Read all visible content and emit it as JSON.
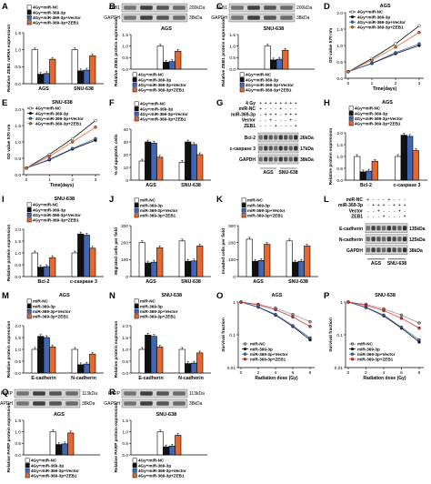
{
  "colors": {
    "white": "#ffffff",
    "black": "#111111",
    "blue": "#3f67b5",
    "orange": "#e8672f",
    "gray": "#9a9a9a",
    "red": "#d9342b"
  },
  "panels": [
    {
      "id": "A",
      "letter": "A",
      "kind": "bar",
      "ylabel": "Relative ZEB1 mRNA expression",
      "ylim": [
        0,
        1.5
      ],
      "yticks": [
        0.0,
        0.5,
        1.0,
        1.5
      ],
      "groups": [
        "AGS",
        "SNU-638"
      ],
      "legend": [
        "4Gy+miR-NC",
        "4Gy+miR-369-3p",
        "4Gy+miR-369-3p+Vector",
        "4Gy+miR-369-3p+ZEB1"
      ],
      "colors": [
        "white",
        "black",
        "blue",
        "orange"
      ],
      "values": [
        [
          1.0,
          0.28,
          0.3,
          0.72
        ],
        [
          1.0,
          0.38,
          0.4,
          0.82
        ]
      ]
    },
    {
      "id": "B",
      "letter": "B",
      "kind": "blot_bar",
      "blot_rows": [
        "ZEB1",
        "GAPDH"
      ],
      "blot_sizes": [
        "200kDa",
        "38kDa"
      ],
      "title": "AGS",
      "ylabel": "Relative ZEB1 protein expression",
      "ylim": [
        0,
        1.5
      ],
      "yticks": [
        0.0,
        0.5,
        1.0,
        1.5
      ],
      "groups": [
        ""
      ],
      "legend": [
        "4Gy+miR-NC",
        "4Gy+miR-369-3p",
        "4Gy+miR-369-3p+Vector",
        "4Gy+miR-369-3p+ZEB1"
      ],
      "colors": [
        "white",
        "black",
        "blue",
        "orange"
      ],
      "values": [
        [
          1.0,
          0.3,
          0.33,
          0.78
        ]
      ]
    },
    {
      "id": "C",
      "letter": "C",
      "kind": "blot_bar",
      "blot_rows": [
        "ZEB1",
        "GAPDH"
      ],
      "blot_sizes": [
        "200kDa",
        "38kDa"
      ],
      "title": "SNU-638",
      "ylabel": "Relative ZEB1 protein expression",
      "ylim": [
        0,
        1.5
      ],
      "yticks": [
        0.0,
        0.5,
        1.0,
        1.5
      ],
      "groups": [
        ""
      ],
      "legend": [
        "4Gy+miR-NC",
        "4Gy+miR-369-3p",
        "4Gy+miR-369-3p+Vector",
        "4Gy+miR-369-3p+ZEB1"
      ],
      "colors": [
        "white",
        "black",
        "blue",
        "orange"
      ],
      "values": [
        [
          1.0,
          0.4,
          0.43,
          0.82
        ]
      ]
    },
    {
      "id": "D",
      "letter": "D",
      "kind": "line",
      "title": "AGS",
      "ylabel": "OD value 570 nm",
      "xlabel": "Time(days)",
      "x": [
        0,
        1,
        2,
        3
      ],
      "ylim": [
        0,
        2.0
      ],
      "yticks": [
        0.0,
        0.5,
        1.0,
        1.5,
        2.0
      ],
      "legend": [
        "4Gy+miR-NC",
        "4Gy+miR-369-3p",
        "4Gy+miR-369-3p+Vector",
        "4Gy+miR-369-3p+ZEB1"
      ],
      "colors": [
        "white",
        "black",
        "blue",
        "orange"
      ],
      "series": [
        [
          0.2,
          0.6,
          1.05,
          1.6
        ],
        [
          0.2,
          0.45,
          0.75,
          1.0
        ],
        [
          0.2,
          0.46,
          0.78,
          1.05
        ],
        [
          0.2,
          0.55,
          0.95,
          1.4
        ]
      ]
    },
    {
      "id": "E",
      "letter": "E",
      "kind": "line",
      "title": "SNU-638",
      "ylabel": "OD value 570 nm",
      "xlabel": "Time(days)",
      "x": [
        0,
        1,
        2,
        3
      ],
      "ylim": [
        0,
        2.0
      ],
      "yticks": [
        0.0,
        0.5,
        1.0,
        1.5,
        2.0
      ],
      "legend": [
        "4Gy+miR-NC",
        "4Gy+miR-369-3p",
        "4Gy+miR-369-3p+Vector",
        "4Gy+miR-369-3p+ZEB1"
      ],
      "colors": [
        "white",
        "black",
        "blue",
        "orange"
      ],
      "series": [
        [
          0.2,
          0.62,
          1.1,
          1.65
        ],
        [
          0.2,
          0.45,
          0.78,
          1.05
        ],
        [
          0.2,
          0.47,
          0.8,
          1.1
        ],
        [
          0.2,
          0.56,
          1.0,
          1.45
        ]
      ]
    },
    {
      "id": "F",
      "letter": "F",
      "kind": "bar",
      "ylabel": "% of apoptotic cells",
      "ylim": [
        0,
        40
      ],
      "yticks": [
        0,
        10,
        20,
        30,
        40
      ],
      "groups": [
        "AGS",
        "SNU-638"
      ],
      "legend": [
        "4Gy+miR-NC",
        "4Gy+miR-369-3p",
        "4Gy+miR-369-3p+Vector",
        "4Gy+miR-369-3p+ZEB1"
      ],
      "colors": [
        "white",
        "black",
        "blue",
        "orange"
      ],
      "values": [
        [
          15,
          30,
          29,
          18
        ],
        [
          14,
          30,
          28,
          20
        ]
      ]
    },
    {
      "id": "G",
      "letter": "G",
      "kind": "blot",
      "conds": [
        "4 Gy",
        "miR-NC",
        "miR-369-3p",
        "Vector",
        "ZEB1"
      ],
      "signs": [
        [
          "+",
          "+",
          "+",
          "+",
          "+",
          "+",
          "+",
          "+"
        ],
        [
          "+",
          "-",
          "-",
          "-",
          "+",
          "-",
          "-",
          "-"
        ],
        [
          "-",
          "+",
          "+",
          "+",
          "-",
          "+",
          "+",
          "+"
        ],
        [
          "-",
          "-",
          "+",
          "-",
          "-",
          "-",
          "+",
          "-"
        ],
        [
          "-",
          "-",
          "-",
          "+",
          "-",
          "-",
          "-",
          "+"
        ]
      ],
      "rows": [
        "Bcl-2",
        "c-caspase 3",
        "GAPDH"
      ],
      "sizes": [
        "26kDa",
        "17kDa",
        "38kDa"
      ],
      "groups": [
        "AGS",
        "SNU-638"
      ]
    },
    {
      "id": "H",
      "letter": "H",
      "kind": "bar",
      "title": "AGS",
      "ylabel": "Relative protein expression",
      "ylim": [
        0,
        2.0
      ],
      "yticks": [
        0.0,
        0.5,
        1.0,
        1.5,
        2.0
      ],
      "groups": [
        "Bcl-2",
        "c-caspase 3"
      ],
      "legend": [
        "4Gy+miR-NC",
        "4Gy+miR-369-3p",
        "4Gy+miR-369-3p+Vector",
        "4Gy+miR-369-3p+ZEB1"
      ],
      "colors": [
        "white",
        "black",
        "blue",
        "orange"
      ],
      "values": [
        [
          1.0,
          0.35,
          0.38,
          0.8
        ],
        [
          1.0,
          1.9,
          1.85,
          1.25
        ]
      ]
    },
    {
      "id": "I",
      "letter": "I",
      "kind": "bar",
      "title": "SNU-638",
      "ylabel": "Relative protein expression",
      "ylim": [
        0,
        2.0
      ],
      "yticks": [
        0.0,
        0.5,
        1.0,
        1.5,
        2.0
      ],
      "groups": [
        "Bcl-2",
        "c-caspase 3"
      ],
      "legend": [
        "4Gy+miR-NC",
        "4Gy+miR-369-3p",
        "4Gy+miR-369-3p+Vector",
        "4Gy+miR-369-3p+ZEB1"
      ],
      "colors": [
        "white",
        "black",
        "blue",
        "orange"
      ],
      "values": [
        [
          1.0,
          0.4,
          0.42,
          0.8
        ],
        [
          1.0,
          1.8,
          1.75,
          1.2
        ]
      ]
    },
    {
      "id": "J",
      "letter": "J",
      "kind": "bar",
      "ylabel": "Migrated cells per field",
      "ylim": [
        0,
        300
      ],
      "yticks": [
        0,
        100,
        200,
        300
      ],
      "groups": [
        "AGS",
        "SNU-638"
      ],
      "legend": [
        "miR-NC",
        "miR-369-3p",
        "miR-369-3p+Vector",
        "miR-369-3p+ZEB1"
      ],
      "colors": [
        "white",
        "black",
        "blue",
        "orange"
      ],
      "values": [
        [
          200,
          80,
          85,
          170
        ],
        [
          210,
          90,
          92,
          180
        ]
      ]
    },
    {
      "id": "K",
      "letter": "K",
      "kind": "bar",
      "ylabel": "Invaded cells per field",
      "ylim": [
        0,
        300
      ],
      "yticks": [
        0,
        100,
        200,
        300
      ],
      "groups": [
        "AGS",
        "SNU-638"
      ],
      "legend": [
        "miR-NC",
        "miR-369-3p",
        "miR-369-3p+Vector",
        "miR-369-3p+ZEB1"
      ],
      "colors": [
        "white",
        "black",
        "blue",
        "orange"
      ],
      "values": [
        [
          220,
          90,
          95,
          190
        ],
        [
          210,
          85,
          90,
          180
        ]
      ]
    },
    {
      "id": "L",
      "letter": "L",
      "kind": "blot",
      "conds": [
        "miR-NC",
        "miR-369-3p",
        "Vector",
        "ZEB1"
      ],
      "signs": [
        [
          "+",
          "-",
          "-",
          "-",
          "+",
          "-",
          "-",
          "-"
        ],
        [
          "-",
          "+",
          "+",
          "+",
          "-",
          "+",
          "+",
          "+"
        ],
        [
          "-",
          "-",
          "+",
          "-",
          "-",
          "-",
          "+",
          "-"
        ],
        [
          "-",
          "-",
          "-",
          "+",
          "-",
          "-",
          "-",
          "+"
        ]
      ],
      "rows": [
        "E-cadherin",
        "N-cadherin",
        "GAPDH"
      ],
      "sizes": [
        "135kDa",
        "125kDa",
        "38kDa"
      ],
      "groups": [
        "AGS",
        "SNU-638"
      ]
    },
    {
      "id": "M",
      "letter": "M",
      "kind": "bar",
      "title": "AGS",
      "ylabel": "Relative protein expression",
      "ylim": [
        0,
        2.0
      ],
      "yticks": [
        0.0,
        0.5,
        1.0,
        1.5,
        2.0
      ],
      "groups": [
        "E-cadherin",
        "N-cadherin"
      ],
      "legend": [
        "miR-NC",
        "miR-369-3p",
        "miR-369-3p+Vector",
        "miR-369-3p+ZEB1"
      ],
      "colors": [
        "white",
        "black",
        "blue",
        "orange"
      ],
      "values": [
        [
          1.0,
          1.55,
          1.5,
          1.1
        ],
        [
          1.0,
          0.35,
          0.38,
          0.8
        ]
      ]
    },
    {
      "id": "N",
      "letter": "N",
      "kind": "bar",
      "title": "SNU-638",
      "ylabel": "Relative protein expression",
      "ylim": [
        0,
        2.0
      ],
      "yticks": [
        0.0,
        0.5,
        1.0,
        1.5,
        2.0
      ],
      "groups": [
        "E-cadherin",
        "N-cadherin"
      ],
      "legend": [
        "miR-NC",
        "miR-369-3p",
        "miR-369-3p+Vector",
        "miR-369-3p+ZEB1"
      ],
      "colors": [
        "white",
        "black",
        "blue",
        "orange"
      ],
      "values": [
        [
          1.0,
          1.6,
          1.55,
          1.1
        ],
        [
          1.0,
          0.4,
          0.42,
          0.85
        ]
      ]
    },
    {
      "id": "O",
      "letter": "O",
      "kind": "line",
      "title": "AGS",
      "ylabel": "Survival fraction",
      "xlabel": "Radiation dose (Gy)",
      "x": [
        0,
        2,
        4,
        6,
        8
      ],
      "ylog": true,
      "ylim": [
        0.01,
        1
      ],
      "yticks": [
        1,
        0.1,
        0.01
      ],
      "ytick_labels": [
        "1",
        "0.1",
        "0.01"
      ],
      "legend": [
        "miR-NC",
        "miR-369-3p",
        "miR-369-3p+Vector",
        "miR-369-3p+ZEB1"
      ],
      "colors": [
        "gray",
        "black",
        "blue",
        "red"
      ],
      "series": [
        [
          1,
          0.85,
          0.65,
          0.42,
          0.25
        ],
        [
          1,
          0.7,
          0.4,
          0.18,
          0.07
        ],
        [
          1,
          0.71,
          0.42,
          0.19,
          0.08
        ],
        [
          1,
          0.82,
          0.58,
          0.35,
          0.18
        ]
      ]
    },
    {
      "id": "P",
      "letter": "P",
      "kind": "line",
      "title": "SNU-638",
      "ylabel": "Survival fraction",
      "xlabel": "Radiation dose (Gy)",
      "x": [
        0,
        2,
        4,
        6,
        8
      ],
      "ylog": true,
      "ylim": [
        0.01,
        1
      ],
      "yticks": [
        1,
        0.1,
        0.01
      ],
      "ytick_labels": [
        "1",
        "0.1",
        "0.01"
      ],
      "legend": [
        "miR-NC",
        "miR-369-3p",
        "miR-369-3p+Vector",
        "miR-369-3p+ZEB1"
      ],
      "colors": [
        "gray",
        "black",
        "blue",
        "red"
      ],
      "series": [
        [
          1,
          0.85,
          0.62,
          0.4,
          0.23
        ],
        [
          1,
          0.68,
          0.38,
          0.16,
          0.06
        ],
        [
          1,
          0.7,
          0.4,
          0.17,
          0.07
        ],
        [
          1,
          0.8,
          0.55,
          0.32,
          0.16
        ]
      ]
    },
    {
      "id": "Q",
      "letter": "Q",
      "kind": "blot_bar",
      "blot_rows": [
        "PARP",
        "GAPDH"
      ],
      "blot_sizes": [
        "113kDa",
        "38kDa"
      ],
      "title": "AGS",
      "ylabel": "Relative PARP protein expression",
      "ylim": [
        0,
        1.5
      ],
      "yticks": [
        0.0,
        0.5,
        1.0,
        1.5
      ],
      "groups": [
        ""
      ],
      "legend": [
        "4Gy+miR-NC",
        "4Gy+miR-369-3p",
        "4Gy+miR-369-3p+Vector",
        "4Gy+miR-369-3p+ZEB1"
      ],
      "colors": [
        "white",
        "black",
        "blue",
        "orange"
      ],
      "values": [
        [
          1.0,
          0.45,
          0.48,
          0.95
        ]
      ]
    },
    {
      "id": "R",
      "letter": "R",
      "kind": "blot_bar",
      "blot_rows": [
        "PARP",
        "GAPDH"
      ],
      "blot_sizes": [
        "113kDa",
        "38kDa"
      ],
      "title": "SNU-638",
      "ylabel": "Relative PARP protein expression",
      "ylim": [
        0,
        1.5
      ],
      "yticks": [
        0.0,
        0.5,
        1.0,
        1.5
      ],
      "groups": [
        ""
      ],
      "legend": [
        "4Gy+miR-NC",
        "4Gy+miR-369-3p",
        "4Gy+miR-369-3p+Vector",
        "4Gy+miR-369-3p+ZEB1"
      ],
      "colors": [
        "white",
        "black",
        "blue",
        "orange"
      ],
      "values": [
        [
          1.0,
          0.35,
          0.38,
          0.85
        ]
      ]
    }
  ]
}
